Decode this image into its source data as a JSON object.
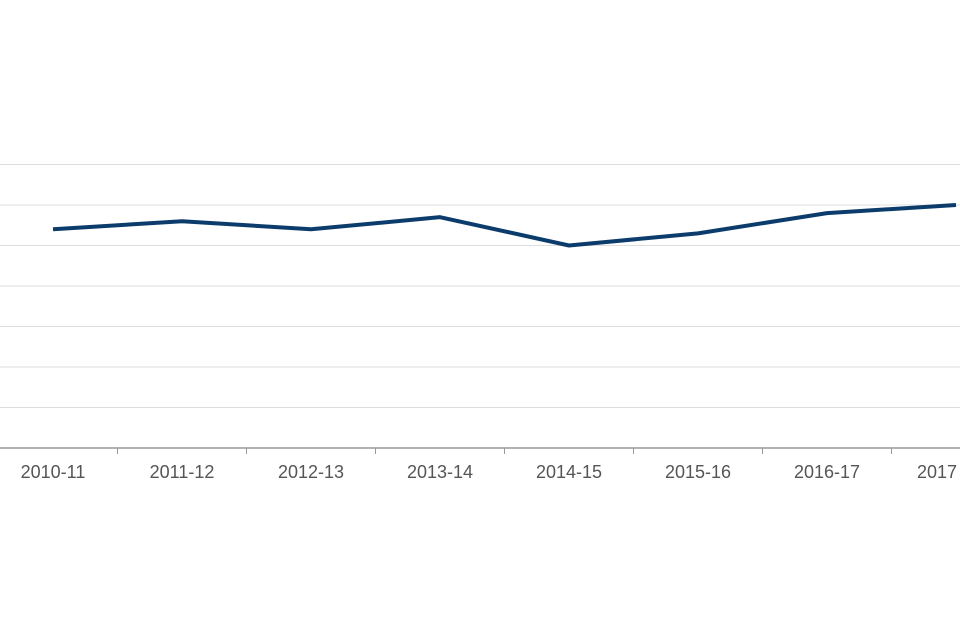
{
  "chart_data": {
    "type": "line",
    "categories": [
      "2010-11",
      "2011-12",
      "2012-13",
      "2013-14",
      "2014-15",
      "2015-16",
      "2016-17",
      "2017"
    ],
    "series": [
      {
        "color": "#0b3c6b",
        "values": [
          5.4,
          5.6,
          5.4,
          5.7,
          5.0,
          5.3,
          5.8,
          6.0
        ]
      }
    ],
    "ylim": [
      0,
      8
    ],
    "yticks": [
      0,
      1,
      2,
      3,
      4,
      5,
      6,
      7
    ],
    "grid": true
  }
}
